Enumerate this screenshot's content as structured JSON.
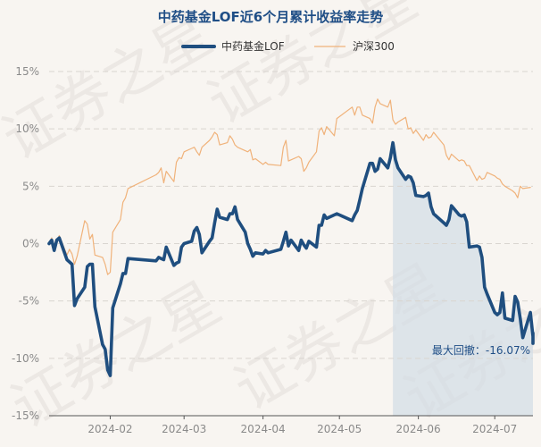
{
  "chart_data": {
    "type": "line",
    "title": "中药基金LOF近6个月累计收益率走势",
    "watermark": "证券之星",
    "ylim": [
      -15,
      15
    ],
    "yticks": [
      {
        "value": 15,
        "label": "15%"
      },
      {
        "value": 10,
        "label": "10%"
      },
      {
        "value": 5,
        "label": "5%"
      },
      {
        "value": 0,
        "label": "0%"
      },
      {
        "value": -5,
        "label": "-5%"
      },
      {
        "value": -10,
        "label": "-10%"
      },
      {
        "value": -15,
        "label": "-15%"
      }
    ],
    "xlim": [
      "2024-01-08",
      "2024-07-16"
    ],
    "xticks": [
      {
        "date": "2024-02-01",
        "label": "2024-02"
      },
      {
        "date": "2024-03-01",
        "label": "2024-03"
      },
      {
        "date": "2024-04-01",
        "label": "2024-04"
      },
      {
        "date": "2024-05-01",
        "label": "2024-05"
      },
      {
        "date": "2024-06-01",
        "label": "2024-06"
      },
      {
        "date": "2024-07-01",
        "label": "2024-07"
      }
    ],
    "grid": true,
    "legend_position": "top-center",
    "series": [
      {
        "name": "中药基金LOF",
        "color": "#1f4e7f",
        "points": [
          [
            "2024-01-08",
            0.0
          ],
          [
            "2024-01-09",
            0.3
          ],
          [
            "2024-01-10",
            -0.6
          ],
          [
            "2024-01-11",
            0.3
          ],
          [
            "2024-01-12",
            0.5
          ],
          [
            "2024-01-15",
            -1.4
          ],
          [
            "2024-01-16",
            -1.6
          ],
          [
            "2024-01-17",
            -1.8
          ],
          [
            "2024-01-18",
            -5.4
          ],
          [
            "2024-01-19",
            -4.8
          ],
          [
            "2024-01-22",
            -3.8
          ],
          [
            "2024-01-23",
            -2.0
          ],
          [
            "2024-01-24",
            -1.8
          ],
          [
            "2024-01-25",
            -1.8
          ],
          [
            "2024-01-26",
            -5.5
          ],
          [
            "2024-01-29",
            -8.8
          ],
          [
            "2024-01-30",
            -9.2
          ],
          [
            "2024-01-31",
            -11.0
          ],
          [
            "2024-02-01",
            -11.5
          ],
          [
            "2024-02-02",
            -5.6
          ],
          [
            "2024-02-05",
            -3.5
          ],
          [
            "2024-02-06",
            -2.6
          ],
          [
            "2024-02-07",
            -2.6
          ],
          [
            "2024-02-08",
            -1.3
          ],
          [
            "2024-02-19",
            -1.5
          ],
          [
            "2024-02-20",
            -1.2
          ],
          [
            "2024-02-21",
            -1.3
          ],
          [
            "2024-02-22",
            -1.4
          ],
          [
            "2024-02-23",
            -0.3
          ],
          [
            "2024-02-26",
            -1.9
          ],
          [
            "2024-02-27",
            -1.7
          ],
          [
            "2024-02-28",
            -1.6
          ],
          [
            "2024-02-29",
            -0.3
          ],
          [
            "2024-03-01",
            0.0
          ],
          [
            "2024-03-04",
            0.2
          ],
          [
            "2024-03-05",
            1.1
          ],
          [
            "2024-03-06",
            1.4
          ],
          [
            "2024-03-07",
            0.8
          ],
          [
            "2024-03-08",
            -0.8
          ],
          [
            "2024-03-11",
            0.2
          ],
          [
            "2024-03-12",
            0.5
          ],
          [
            "2024-03-13",
            1.8
          ],
          [
            "2024-03-14",
            3.0
          ],
          [
            "2024-03-15",
            2.3
          ],
          [
            "2024-03-18",
            2.1
          ],
          [
            "2024-03-19",
            2.6
          ],
          [
            "2024-03-20",
            2.6
          ],
          [
            "2024-03-21",
            3.2
          ],
          [
            "2024-03-22",
            2.1
          ],
          [
            "2024-03-25",
            1.0
          ],
          [
            "2024-03-26",
            0.0
          ],
          [
            "2024-03-27",
            -0.5
          ],
          [
            "2024-03-28",
            -1.1
          ],
          [
            "2024-03-29",
            -0.8
          ],
          [
            "2024-04-01",
            -0.9
          ],
          [
            "2024-04-02",
            -0.6
          ],
          [
            "2024-04-03",
            -0.8
          ],
          [
            "2024-04-08",
            -0.5
          ],
          [
            "2024-04-09",
            0.2
          ],
          [
            "2024-04-10",
            1.0
          ],
          [
            "2024-04-11",
            -0.2
          ],
          [
            "2024-04-12",
            0.3
          ],
          [
            "2024-04-15",
            -0.6
          ],
          [
            "2024-04-16",
            0.3
          ],
          [
            "2024-04-17",
            -0.1
          ],
          [
            "2024-04-18",
            -0.4
          ],
          [
            "2024-04-19",
            0.2
          ],
          [
            "2024-04-22",
            -0.3
          ],
          [
            "2024-04-23",
            1.6
          ],
          [
            "2024-04-24",
            1.6
          ],
          [
            "2024-04-25",
            2.5
          ],
          [
            "2024-04-26",
            2.2
          ],
          [
            "2024-04-29",
            2.5
          ],
          [
            "2024-04-30",
            2.6
          ],
          [
            "2024-05-06",
            2.0
          ],
          [
            "2024-05-07",
            2.5
          ],
          [
            "2024-05-08",
            2.9
          ],
          [
            "2024-05-09",
            3.8
          ],
          [
            "2024-05-10",
            4.8
          ],
          [
            "2024-05-13",
            7.0
          ],
          [
            "2024-05-14",
            7.0
          ],
          [
            "2024-05-15",
            6.3
          ],
          [
            "2024-05-16",
            6.5
          ],
          [
            "2024-05-17",
            7.4
          ],
          [
            "2024-05-20",
            6.6
          ],
          [
            "2024-05-21",
            7.5
          ],
          [
            "2024-05-22",
            8.8
          ],
          [
            "2024-05-23",
            7.3
          ],
          [
            "2024-05-24",
            6.6
          ],
          [
            "2024-05-27",
            5.6
          ],
          [
            "2024-05-28",
            5.9
          ],
          [
            "2024-05-29",
            5.8
          ],
          [
            "2024-05-30",
            5.3
          ],
          [
            "2024-05-31",
            4.2
          ],
          [
            "2024-06-03",
            4.1
          ],
          [
            "2024-06-04",
            4.2
          ],
          [
            "2024-06-05",
            4.4
          ],
          [
            "2024-06-06",
            3.2
          ],
          [
            "2024-06-07",
            2.6
          ],
          [
            "2024-06-11",
            1.8
          ],
          [
            "2024-06-12",
            1.6
          ],
          [
            "2024-06-13",
            2.1
          ],
          [
            "2024-06-14",
            3.3
          ],
          [
            "2024-06-17",
            2.5
          ],
          [
            "2024-06-18",
            2.4
          ],
          [
            "2024-06-19",
            2.5
          ],
          [
            "2024-06-20",
            1.9
          ],
          [
            "2024-06-21",
            -0.3
          ],
          [
            "2024-06-24",
            -0.2
          ],
          [
            "2024-06-25",
            -0.3
          ],
          [
            "2024-06-26",
            -1.2
          ],
          [
            "2024-06-27",
            -3.8
          ],
          [
            "2024-06-28",
            -4.4
          ],
          [
            "2024-07-01",
            -6.0
          ],
          [
            "2024-07-02",
            -6.2
          ],
          [
            "2024-07-03",
            -6.0
          ],
          [
            "2024-07-04",
            -4.3
          ],
          [
            "2024-07-05",
            -6.5
          ],
          [
            "2024-07-08",
            -6.7
          ],
          [
            "2024-07-09",
            -4.6
          ],
          [
            "2024-07-10",
            -5.1
          ],
          [
            "2024-07-11",
            -6.5
          ],
          [
            "2024-07-12",
            -8.2
          ],
          [
            "2024-07-15",
            -6.0
          ],
          [
            "2024-07-16",
            -8.1
          ],
          [
            "2024-07-17",
            -8.6
          ],
          [
            "2024-07-18",
            -7.8
          ],
          [
            "2024-07-19",
            -8.7
          ]
        ]
      },
      {
        "name": "沪深300",
        "color": "#f0b27a",
        "points": [
          [
            "2024-01-08",
            0.0
          ],
          [
            "2024-01-09",
            0.5
          ],
          [
            "2024-01-10",
            -0.2
          ],
          [
            "2024-01-11",
            0.1
          ],
          [
            "2024-01-12",
            0.7
          ],
          [
            "2024-01-15",
            -1.0
          ],
          [
            "2024-01-16",
            -0.5
          ],
          [
            "2024-01-17",
            -0.9
          ],
          [
            "2024-01-18",
            -1.8
          ],
          [
            "2024-01-19",
            -1.1
          ],
          [
            "2024-01-22",
            2.0
          ],
          [
            "2024-01-23",
            1.7
          ],
          [
            "2024-01-24",
            0.4
          ],
          [
            "2024-01-25",
            0.8
          ],
          [
            "2024-01-26",
            -1.0
          ],
          [
            "2024-01-29",
            -1.2
          ],
          [
            "2024-01-30",
            -1.8
          ],
          [
            "2024-01-31",
            -2.7
          ],
          [
            "2024-02-01",
            -2.5
          ],
          [
            "2024-02-02",
            1.0
          ],
          [
            "2024-02-05",
            2.1
          ],
          [
            "2024-02-06",
            3.6
          ],
          [
            "2024-02-07",
            4.0
          ],
          [
            "2024-02-08",
            4.8
          ],
          [
            "2024-02-19",
            6.0
          ],
          [
            "2024-02-20",
            6.2
          ],
          [
            "2024-02-21",
            6.6
          ],
          [
            "2024-02-22",
            5.3
          ],
          [
            "2024-02-23",
            6.3
          ],
          [
            "2024-02-26",
            5.4
          ],
          [
            "2024-02-27",
            7.1
          ],
          [
            "2024-02-28",
            7.5
          ],
          [
            "2024-02-29",
            7.4
          ],
          [
            "2024-03-01",
            8.0
          ],
          [
            "2024-03-04",
            8.3
          ],
          [
            "2024-03-05",
            8.4
          ],
          [
            "2024-03-06",
            8.0
          ],
          [
            "2024-03-07",
            7.7
          ],
          [
            "2024-03-08",
            8.4
          ],
          [
            "2024-03-11",
            9.0
          ],
          [
            "2024-03-12",
            9.3
          ],
          [
            "2024-03-13",
            9.7
          ],
          [
            "2024-03-14",
            9.5
          ],
          [
            "2024-03-15",
            8.6
          ],
          [
            "2024-03-18",
            8.8
          ],
          [
            "2024-03-19",
            9.4
          ],
          [
            "2024-03-20",
            9.1
          ],
          [
            "2024-03-21",
            8.6
          ],
          [
            "2024-03-22",
            8.4
          ],
          [
            "2024-03-25",
            8.1
          ],
          [
            "2024-03-26",
            8.0
          ],
          [
            "2024-03-27",
            8.2
          ],
          [
            "2024-03-28",
            7.3
          ],
          [
            "2024-03-29",
            7.4
          ],
          [
            "2024-04-01",
            6.9
          ],
          [
            "2024-04-02",
            7.1
          ],
          [
            "2024-04-03",
            6.9
          ],
          [
            "2024-04-08",
            6.8
          ],
          [
            "2024-04-09",
            8.4
          ],
          [
            "2024-04-10",
            9.0
          ],
          [
            "2024-04-11",
            7.2
          ],
          [
            "2024-04-12",
            7.3
          ],
          [
            "2024-04-15",
            7.6
          ],
          [
            "2024-04-16",
            7.4
          ],
          [
            "2024-04-17",
            6.3
          ],
          [
            "2024-04-18",
            6.6
          ],
          [
            "2024-04-19",
            7.1
          ],
          [
            "2024-04-22",
            8.0
          ],
          [
            "2024-04-23",
            9.8
          ],
          [
            "2024-04-24",
            10.1
          ],
          [
            "2024-04-25",
            9.5
          ],
          [
            "2024-04-26",
            10.2
          ],
          [
            "2024-04-29",
            9.4
          ],
          [
            "2024-04-30",
            10.9
          ],
          [
            "2024-05-06",
            11.9
          ],
          [
            "2024-05-07",
            11.2
          ],
          [
            "2024-05-08",
            11.9
          ],
          [
            "2024-05-09",
            11.9
          ],
          [
            "2024-05-10",
            11.2
          ],
          [
            "2024-05-13",
            10.9
          ],
          [
            "2024-05-14",
            10.5
          ],
          [
            "2024-05-15",
            11.9
          ],
          [
            "2024-05-16",
            12.6
          ],
          [
            "2024-05-17",
            12.2
          ],
          [
            "2024-05-20",
            11.9
          ],
          [
            "2024-05-21",
            12.5
          ],
          [
            "2024-05-22",
            10.8
          ],
          [
            "2024-05-23",
            10.4
          ],
          [
            "2024-05-24",
            10.6
          ],
          [
            "2024-05-27",
            11.0
          ],
          [
            "2024-05-28",
            10.0
          ],
          [
            "2024-05-29",
            10.1
          ],
          [
            "2024-05-30",
            9.6
          ],
          [
            "2024-05-31",
            9.9
          ],
          [
            "2024-06-03",
            9.0
          ],
          [
            "2024-06-04",
            9.5
          ],
          [
            "2024-06-05",
            9.2
          ],
          [
            "2024-06-06",
            9.3
          ],
          [
            "2024-06-07",
            9.7
          ],
          [
            "2024-06-11",
            8.6
          ],
          [
            "2024-06-12",
            7.7
          ],
          [
            "2024-06-13",
            7.3
          ],
          [
            "2024-06-14",
            7.8
          ],
          [
            "2024-06-17",
            7.2
          ],
          [
            "2024-06-18",
            7.3
          ],
          [
            "2024-06-19",
            7.2
          ],
          [
            "2024-06-20",
            6.8
          ],
          [
            "2024-06-21",
            6.8
          ],
          [
            "2024-06-24",
            5.5
          ],
          [
            "2024-06-25",
            5.9
          ],
          [
            "2024-06-26",
            5.6
          ],
          [
            "2024-06-27",
            5.7
          ],
          [
            "2024-06-28",
            6.2
          ],
          [
            "2024-07-01",
            5.9
          ],
          [
            "2024-07-02",
            5.7
          ],
          [
            "2024-07-03",
            5.6
          ],
          [
            "2024-07-04",
            5.2
          ],
          [
            "2024-07-05",
            5.0
          ],
          [
            "2024-07-08",
            4.6
          ],
          [
            "2024-07-09",
            4.4
          ],
          [
            "2024-07-10",
            4.0
          ],
          [
            "2024-07-11",
            5.0
          ],
          [
            "2024-07-12",
            4.8
          ],
          [
            "2024-07-15",
            4.9
          ]
        ]
      }
    ],
    "drawdown": {
      "start": "2024-05-22",
      "end": "2024-07-19",
      "label": "最大回撤：-16.07%",
      "fill_color": "#d4dde6"
    }
  }
}
